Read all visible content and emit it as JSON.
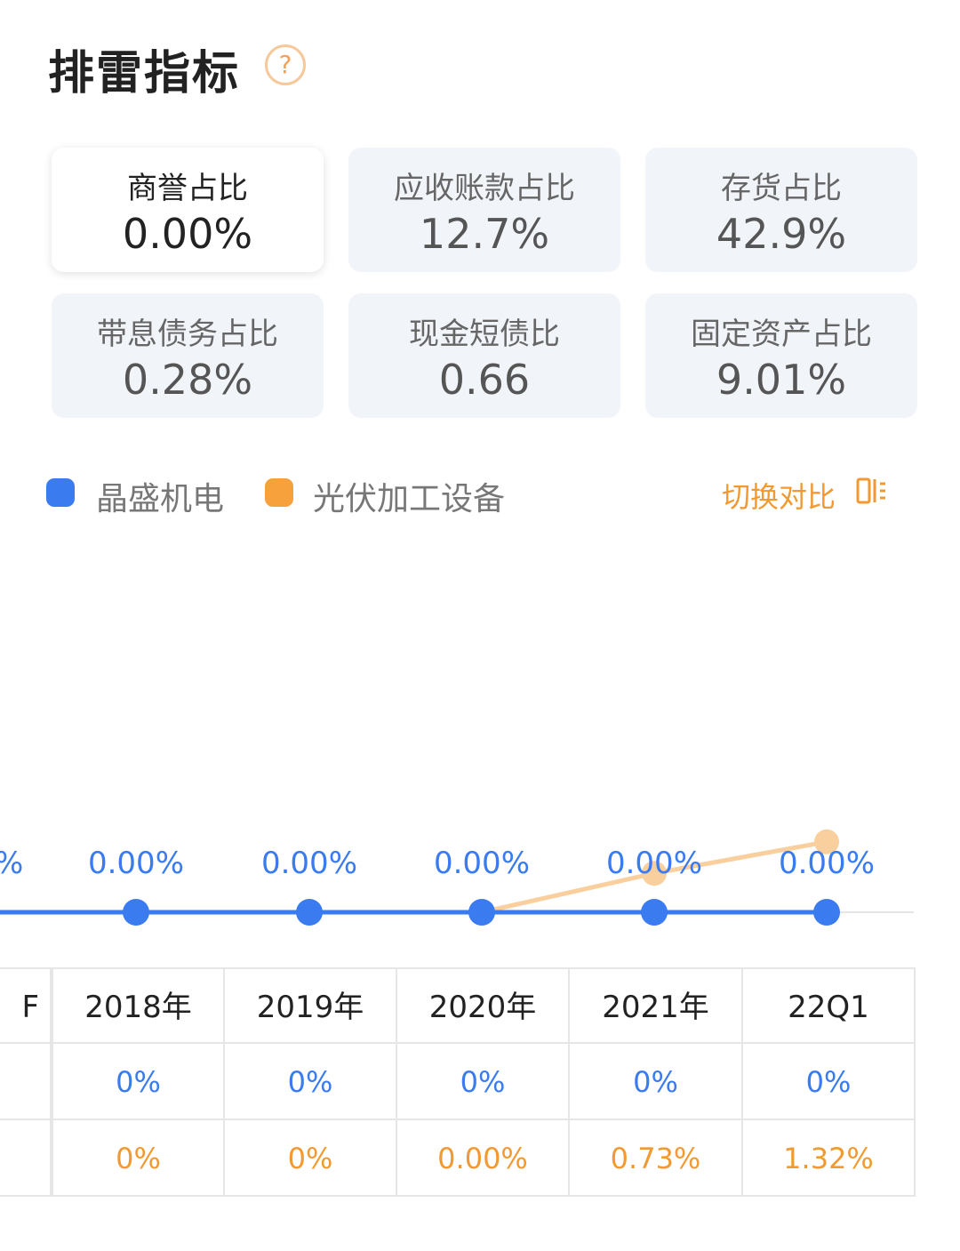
{
  "header": {
    "title": "排雷指标",
    "help_icon": "question-circle-icon",
    "help_symbol": "?"
  },
  "metrics": [
    {
      "label": "商誉占比",
      "value": "0.00%",
      "selected": true
    },
    {
      "label": "应收账款占比",
      "value": "12.7%"
    },
    {
      "label": "存货占比",
      "value": "42.9%"
    },
    {
      "label": "带息债务占比",
      "value": "0.28%"
    },
    {
      "label": "现金短债比",
      "value": "0.66"
    },
    {
      "label": "固定资产占比",
      "value": "9.01%"
    }
  ],
  "legend": {
    "items": [
      {
        "name": "晶盛机电",
        "color": "#3a7bf0"
      },
      {
        "name": "光伏加工设备",
        "color": "#f7a13c"
      }
    ],
    "switch_label": "切换对比",
    "switch_icon": "switch-compare-icon"
  },
  "chart_data": {
    "type": "line",
    "x": [
      "2018年",
      "2019年",
      "2020年",
      "2021年",
      "22Q1"
    ],
    "series": [
      {
        "name": "晶盛机电",
        "values": [
          0,
          0,
          0,
          0,
          0
        ],
        "labels": [
          "0.00%",
          "0.00%",
          "0.00%",
          "0.00%",
          "0.00%"
        ],
        "color": "#3a7bf0"
      },
      {
        "name": "光伏加工设备",
        "values": [
          0,
          0,
          0.0,
          0.73,
          1.32
        ],
        "color": "#f9cf9e"
      }
    ],
    "left_clipped_label": "%"
  },
  "table": {
    "left_clipped_header": "F",
    "columns": [
      "2018年",
      "2019年",
      "2020年",
      "2021年",
      "22Q1"
    ],
    "rows": [
      {
        "color": "blue",
        "values": [
          "0%",
          "0%",
          "0%",
          "0%",
          "0%"
        ]
      },
      {
        "color": "orange",
        "values": [
          "0%",
          "0%",
          "0.00%",
          "0.73%",
          "1.32%"
        ]
      }
    ]
  }
}
